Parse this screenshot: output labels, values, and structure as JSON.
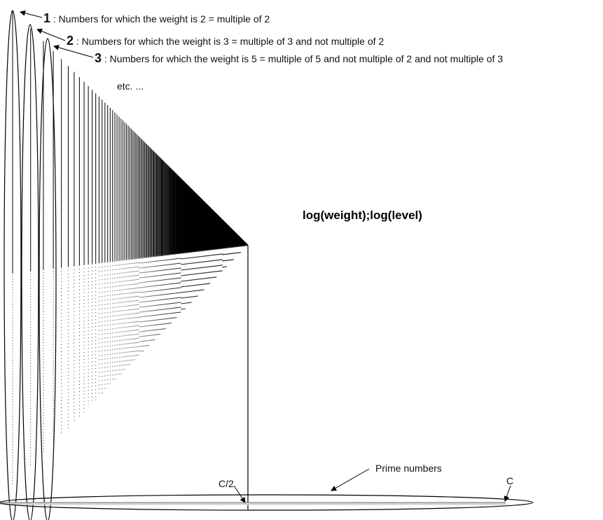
{
  "annotations": [
    {
      "number": "1",
      "text": ": Numbers for which the weight is 2 = multiple of 2"
    },
    {
      "number": "2",
      "text": ": Numbers for which the weight is 3 = multiple of 3 and not multiple of 2"
    },
    {
      "number": "3",
      "text": ": Numbers for which the weight is 5 = multiple of 5 and not multiple of 2 and not multiple of 3"
    }
  ],
  "etc_label": "etc. ...",
  "axes_label": "log(weight);log(level)",
  "prime_label": "Prime numbers",
  "half_label": "C/2",
  "c_label": "C",
  "colors": {
    "ink": "#000000",
    "prime_band": "#c8d4e0"
  }
}
